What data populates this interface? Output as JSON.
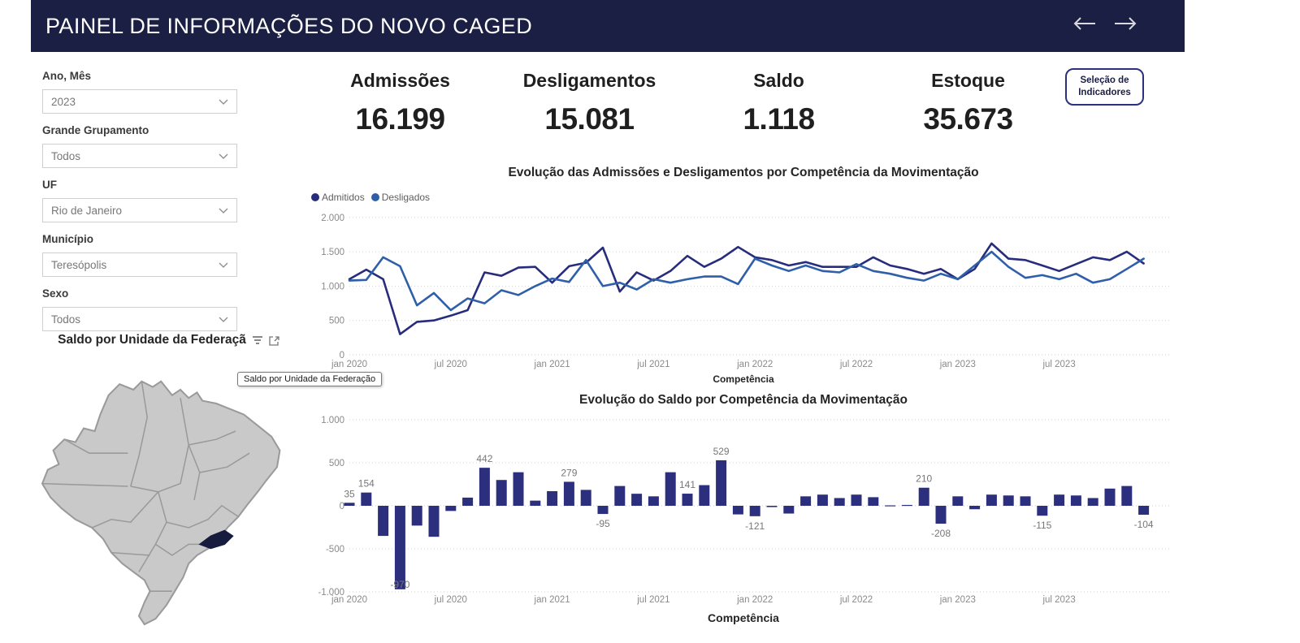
{
  "header": {
    "title": "PAINEL DE INFORMAÇÕES DO NOVO CAGED",
    "nav_back_icon": "arrow-left",
    "nav_forward_icon": "arrow-right",
    "bg_color": "#1b1f44"
  },
  "filters": [
    {
      "label": "Ano, Mês",
      "value": "2023"
    },
    {
      "label": "Grande Grupamento",
      "value": "Todos"
    },
    {
      "label": "UF",
      "value": "Rio de Janeiro"
    },
    {
      "label": "Município",
      "value": "Teresópolis"
    },
    {
      "label": "Sexo",
      "value": "Todos"
    }
  ],
  "kpis": [
    {
      "label": "Admissões",
      "value": "16.199"
    },
    {
      "label": "Desligamentos",
      "value": "15.081"
    },
    {
      "label": "Saldo",
      "value": "1.118"
    },
    {
      "label": "Estoque",
      "value": "35.673"
    }
  ],
  "selector_button": {
    "line1": "Seleção de",
    "line2": "Indicadores"
  },
  "map": {
    "title": "Saldo por Unidade da Federaçã",
    "tooltip": "Saldo por Unidade da Federação",
    "state_fill": "#c9c9c9",
    "state_border": "#9a9a9a",
    "highlight_fill": "#171b3d",
    "highlighted_state": "Rio de Janeiro"
  },
  "chart_data": [
    {
      "type": "line",
      "title": "Evolução das Admissões e Desligamentos por Competência da Movimentação",
      "xlabel": "Competência",
      "x_ticks": [
        "jan 2020",
        "jul 2020",
        "jan 2021",
        "jul 2021",
        "jan 2022",
        "jul 2022",
        "jan 2023",
        "jul 2023"
      ],
      "y_ticks": [
        "0",
        "500",
        "1.000",
        "1.500",
        "2.000"
      ],
      "y_tick_values": [
        0,
        500,
        1000,
        1500,
        2000
      ],
      "ylim": [
        0,
        2000
      ],
      "grid": true,
      "legend_position": "top-left",
      "series": [
        {
          "name": "Admitidos",
          "color": "#272c7c",
          "values": [
            1100,
            1240,
            1100,
            300,
            480,
            500,
            570,
            650,
            1200,
            1150,
            1270,
            1280,
            1050,
            1290,
            1340,
            1560,
            920,
            1200,
            1080,
            1220,
            1440,
            1280,
            1400,
            1570,
            1420,
            1380,
            1300,
            1350,
            1280,
            1280,
            1280,
            1420,
            1300,
            1250,
            1180,
            1250,
            1100,
            1250,
            1620,
            1400,
            1380,
            1300,
            1220,
            1320,
            1420,
            1380,
            1500,
            1330
          ]
        },
        {
          "name": "Desligados",
          "color": "#2e5fa8",
          "values": [
            1080,
            1090,
            1420,
            1290,
            720,
            900,
            650,
            820,
            750,
            940,
            870,
            1000,
            1110,
            1060,
            1380,
            1000,
            1050,
            950,
            1100,
            1050,
            1100,
            1140,
            1140,
            1030,
            1400,
            1300,
            1220,
            1300,
            1220,
            1200,
            1320,
            1220,
            1180,
            1120,
            1080,
            1180,
            1100,
            1300,
            1500,
            1280,
            1120,
            1160,
            1100,
            1180,
            1050,
            1100,
            1250,
            1400
          ]
        }
      ]
    },
    {
      "type": "bar",
      "title": "Evolução do Saldo por Competência da Movimentação",
      "xlabel": "Competência",
      "x_ticks": [
        "jan 2020",
        "jul 2020",
        "jan 2021",
        "jul 2021",
        "jan 2022",
        "jul 2022",
        "jan 2023",
        "jul 2023"
      ],
      "y_ticks": [
        "-1.000",
        "-500",
        "0",
        "500",
        "1.000"
      ],
      "y_tick_values": [
        -1000,
        -500,
        0,
        500,
        1000
      ],
      "ylim": [
        -1000,
        1000
      ],
      "grid": true,
      "bar_color": "#2b2f7e",
      "values": [
        35,
        154,
        -350,
        -970,
        -230,
        -360,
        -60,
        95,
        442,
        300,
        390,
        60,
        170,
        279,
        185,
        -95,
        230,
        140,
        110,
        390,
        141,
        240,
        529,
        -100,
        -121,
        -15,
        -90,
        110,
        130,
        90,
        130,
        100,
        5,
        10,
        210,
        -208,
        110,
        -40,
        130,
        120,
        110,
        -115,
        130,
        120,
        90,
        200,
        230,
        -104
      ],
      "data_labels": {
        "0": "35",
        "1": "154",
        "3": "-970",
        "8": "442",
        "13": "279",
        "15": "-95",
        "20": "141",
        "22": "529",
        "24": "-121",
        "34": "210",
        "35": "-208",
        "41": "-115",
        "47": "-104"
      }
    }
  ]
}
